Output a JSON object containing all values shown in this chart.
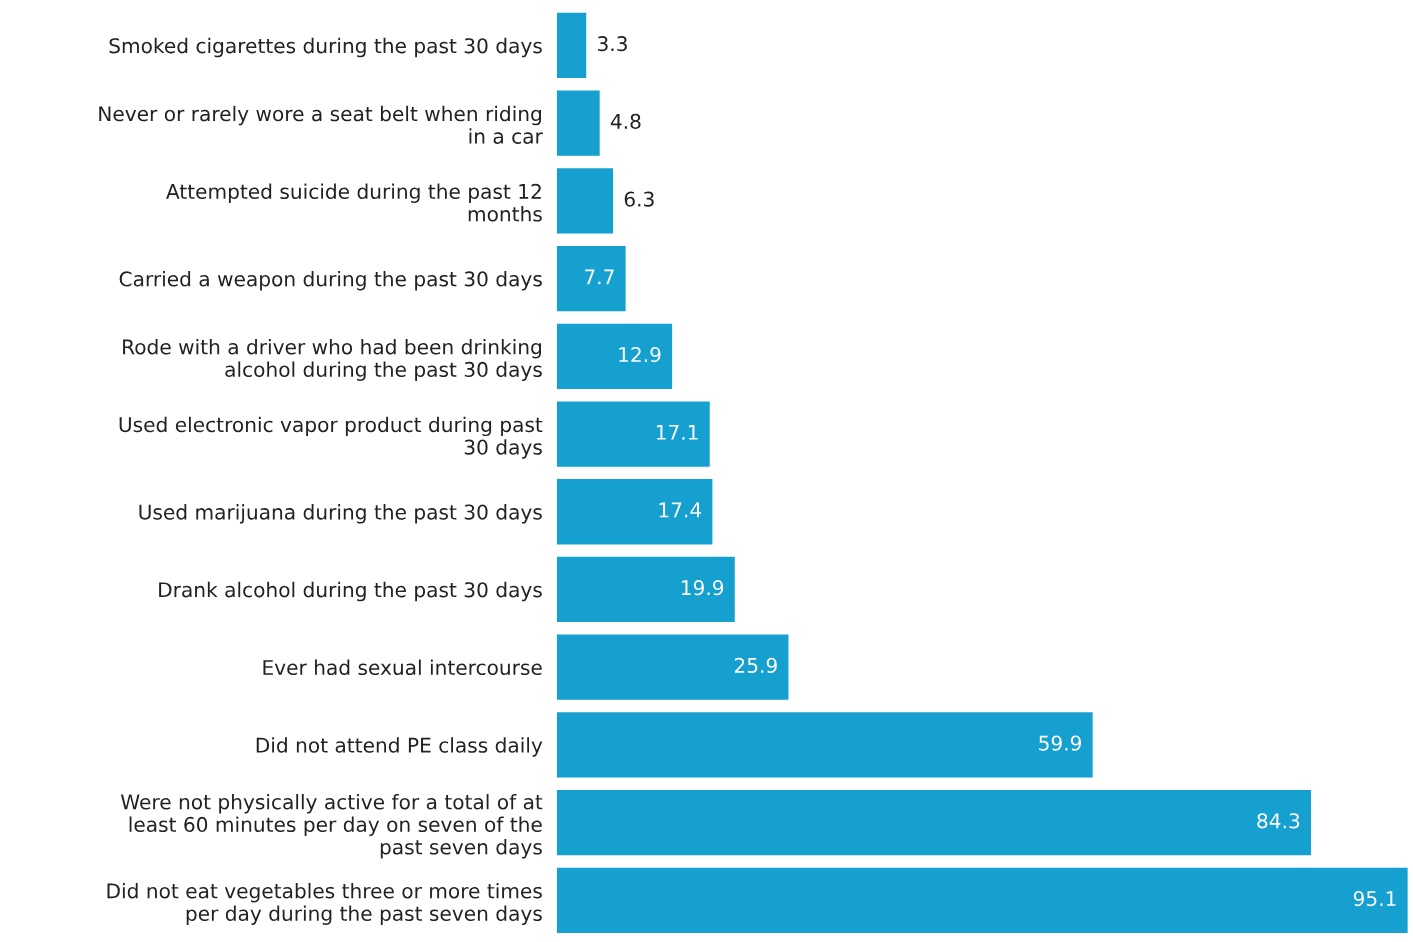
{
  "chart_data": {
    "type": "bar",
    "orientation": "horizontal",
    "data_labels": true,
    "color": "#15a0d0",
    "categories": [
      "Smoked cigarettes during the past 30 days",
      "Never or rarely wore a seat belt when riding\nin a car",
      "Attempted suicide during the past 12\nmonths",
      "Carried a weapon during the past 30 days",
      "Rode with a driver who had been drinking\nalcohol during the past 30 days",
      "Used electronic vapor product during past\n30 days",
      "Used marijuana during the past 30 days",
      "Drank alcohol during the past 30 days",
      "Ever had sexual intercourse",
      "Did not attend PE class daily",
      "Were not physically active for a total of at\nleast 60 minutes per day on seven of the\npast seven days",
      "Did not eat vegetables three or more times\nper day during the past seven days"
    ],
    "values": [
      3.3,
      4.8,
      6.3,
      7.7,
      12.9,
      17.1,
      17.4,
      19.9,
      25.9,
      59.9,
      84.3,
      95.1
    ],
    "tick_labels": "y",
    "grid": false,
    "legend": false
  }
}
